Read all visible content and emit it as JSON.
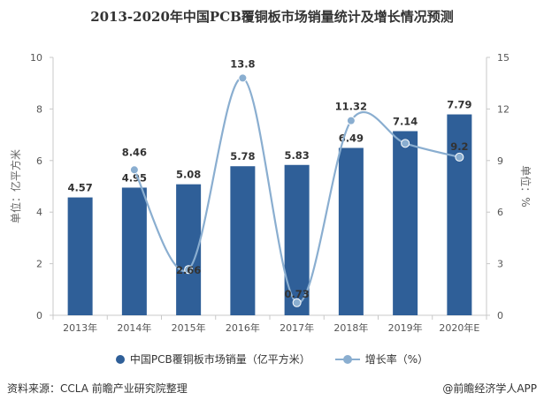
{
  "chart_data": {
    "type": "bar",
    "title": "2013-2020年中国PCB覆铜板市场销量统计及增长情况预测",
    "categories": [
      "2013年",
      "2014年",
      "2015年",
      "2016年",
      "2017年",
      "2018年",
      "2019年",
      "2020年E"
    ],
    "series": [
      {
        "name": "中国PCB覆铜板市场销量（亿平方米）",
        "type": "bar",
        "axis": "left",
        "values": [
          4.57,
          4.95,
          5.08,
          5.78,
          5.83,
          6.49,
          7.14,
          7.79
        ],
        "color": "#2f5f98"
      },
      {
        "name": "增长率（%）",
        "type": "line",
        "axis": "right",
        "values": [
          null,
          8.46,
          2.66,
          13.8,
          0.73,
          11.32,
          10.0,
          9.2
        ],
        "color": "#8aaed0"
      }
    ],
    "rate_labels": [
      "",
      "8.46",
      "2.66",
      "13.8",
      "0.73",
      "11.32",
      "",
      "9.2"
    ],
    "ylabel_left": "单位：亿平方米",
    "ylabel_right": "单位：%",
    "ylim_left": [
      0,
      10
    ],
    "ylim_right": [
      0,
      15
    ],
    "yticks_left": [
      0,
      2,
      4,
      6,
      8,
      10
    ],
    "yticks_right": [
      0,
      3,
      6,
      9,
      12,
      15
    ],
    "grid": false,
    "legend_position": "bottom"
  },
  "footer": {
    "source": "资料来源：CCLA 前瞻产业研究院整理",
    "brand": "@前瞻经济学人APP"
  }
}
